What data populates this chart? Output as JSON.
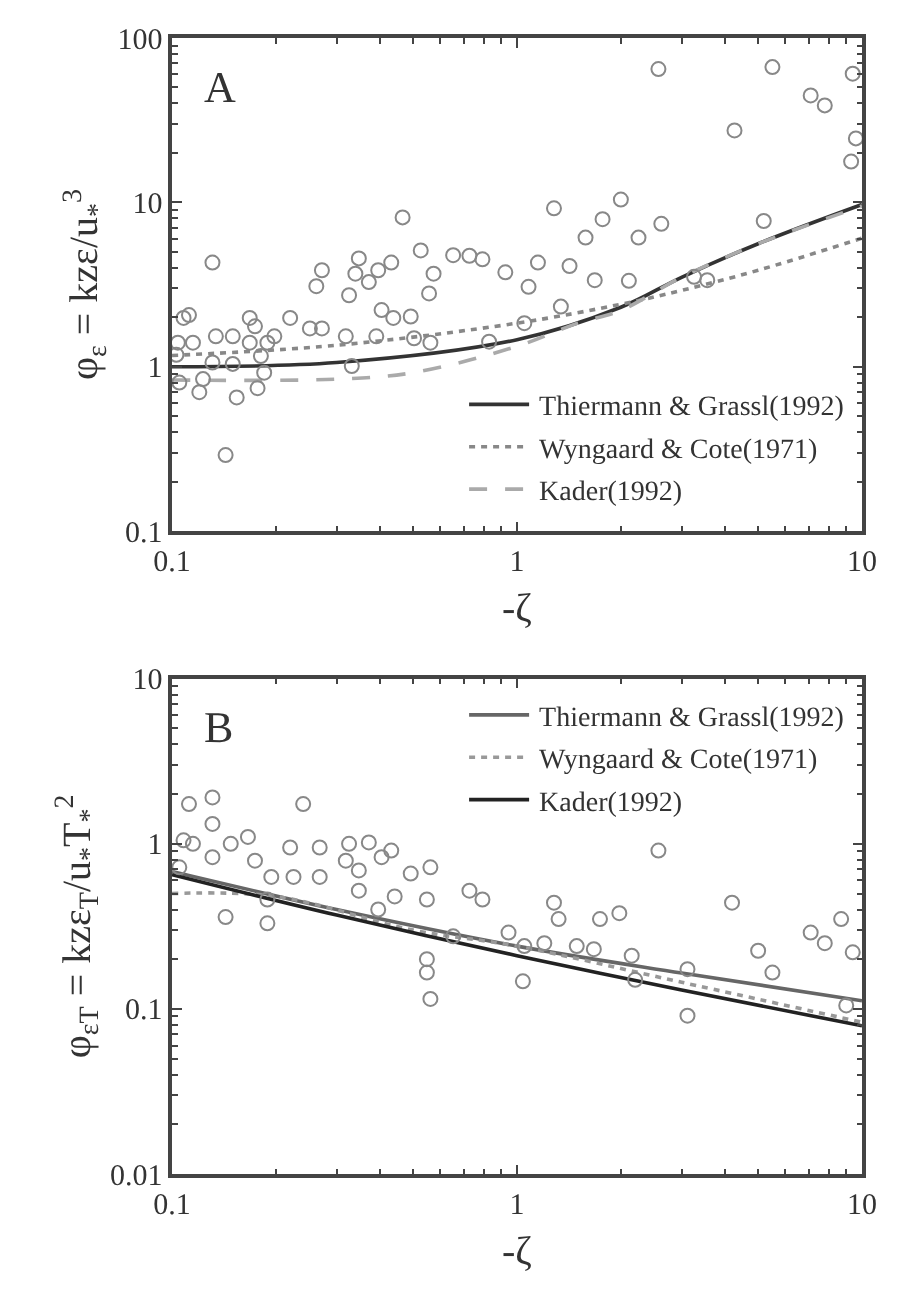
{
  "chart_data": [
    {
      "type": "scatter",
      "xlabel": "-ζ",
      "ylabel": "φ$_{ε}$ = kzε/u$_{*}$$^{3}$",
      "annotations": [
        "A"
      ],
      "log": "xy",
      "xlim": [
        0.1,
        10
      ],
      "ylim": [
        0.1,
        100
      ],
      "xticks": [
        0.1,
        1,
        10
      ],
      "yticks": [
        0.1,
        1,
        10,
        100
      ],
      "legend": "bottom right",
      "marker": "circle",
      "series": [
        {
          "color": "#888888",
          "x": [
            0.112,
            0.131,
            0.15,
            0.168,
            0.168,
            0.198,
            0.251,
            0.348,
            0.466,
            0.526,
            0.653,
            0.794,
            0.925,
            1.08,
            1.28,
            1.42,
            1.58,
            1.77,
            2.0,
            2.62,
            2.25,
            2.11,
            1.68,
            1.34,
            1.15,
            3.56,
            2.57,
            5.5,
            7.1,
            7.8,
            4.27,
            9.4,
            9.6,
            9.3,
            5.19,
            0.272,
            0.262,
            0.326,
            0.34,
            0.372,
            0.396,
            0.405,
            0.432,
            0.438,
            0.492,
            0.556,
            0.573,
            0.728,
            0.561,
            0.319,
            0.332,
            0.22,
            0.272,
            0.391,
            0.503,
            0.83,
            1.05,
            0.143,
            0.154,
            0.12,
            0.105,
            0.123,
            0.177,
            0.185,
            0.15,
            0.181,
            0.131,
            0.104,
            0.103,
            0.115,
            0.108,
            0.134,
            0.174,
            0.189,
            3.26
          ],
          "values": [
            2.06,
            4.3,
            1.53,
            1.98,
            1.4,
            1.53,
            1.71,
            4.56,
            8.1,
            5.1,
            4.77,
            4.5,
            3.75,
            3.06,
            9.2,
            4.1,
            6.1,
            7.9,
            10.4,
            7.4,
            6.1,
            3.33,
            3.36,
            2.32,
            4.3,
            3.36,
            64.7,
            66.5,
            44.7,
            38.9,
            27.4,
            60.7,
            24.5,
            17.7,
            7.7,
            3.86,
            3.09,
            2.72,
            3.68,
            3.27,
            3.86,
            2.21,
            4.3,
            1.98,
            2.02,
            2.79,
            3.68,
            4.73,
            1.4,
            1.53,
            1.01,
            1.98,
            1.71,
            1.53,
            1.49,
            1.42,
            1.84,
            0.29,
            0.65,
            0.7,
            0.8,
            0.84,
            0.74,
            0.92,
            1.04,
            1.16,
            1.06,
            1.4,
            1.18,
            1.4,
            1.98,
            1.53,
            1.76,
            1.4,
            3.52
          ]
        },
        {
          "type": "line",
          "name": "Thiermann & Grassl(1992)",
          "color": "#333333",
          "line_style": "solid",
          "marker": "none",
          "x": [
            0.1,
            0.3,
            1,
            2,
            3,
            5,
            10
          ],
          "values": [
            1.0,
            1.06,
            1.46,
            2.3,
            3.5,
            5.6,
            9.7
          ]
        },
        {
          "type": "line",
          "name": "Wyngaard & Cote(1971)",
          "color": "#888888",
          "line_style": "dotted",
          "marker": "none",
          "x": [
            0.1,
            0.3,
            1,
            2,
            3,
            5,
            10
          ],
          "values": [
            1.17,
            1.35,
            1.84,
            2.4,
            2.91,
            3.86,
            6.05
          ]
        },
        {
          "type": "line",
          "name": "Kader(1992)",
          "color": "#aaaaaa",
          "line_style": "dashed",
          "marker": "none",
          "x": [
            0.1,
            0.3,
            0.5,
            1,
            1.5,
            2,
            3,
            5,
            10
          ],
          "values": [
            0.83,
            0.84,
            0.92,
            1.33,
            1.84,
            2.2,
            3.5,
            5.6,
            9.5
          ]
        }
      ]
    },
    {
      "type": "scatter",
      "xlabel": "-ζ",
      "ylabel": "φ$_{εT}$ = kzε$_{T}$/u$_{*}$T$_{*}$$^{2}$",
      "annotations": [
        "B"
      ],
      "log": "xy",
      "xlim": [
        0.1,
        10
      ],
      "ylim": [
        0.01,
        10
      ],
      "xticks": [
        0.1,
        1,
        10
      ],
      "yticks": [
        0.01,
        0.1,
        1,
        10
      ],
      "legend": "top right",
      "marker": "circle",
      "series": [
        {
          "color": "#888888",
          "x": [
            0.112,
            0.131,
            0.131,
            0.108,
            0.115,
            0.105,
            0.131,
            0.148,
            0.166,
            0.174,
            0.143,
            0.189,
            0.189,
            0.194,
            0.22,
            0.225,
            0.24,
            0.268,
            0.268,
            0.319,
            0.326,
            0.348,
            0.372,
            0.405,
            0.432,
            0.348,
            0.396,
            0.442,
            0.492,
            0.561,
            0.548,
            0.548,
            0.548,
            0.561,
            0.653,
            0.728,
            0.794,
            0.945,
            1.04,
            1.05,
            1.2,
            1.28,
            1.32,
            1.49,
            1.67,
            1.74,
            1.98,
            2.15,
            2.2,
            2.57,
            3.12,
            3.12,
            4.2,
            5.0,
            5.5,
            7.1,
            7.8,
            8.7,
            9.0,
            9.4
          ],
          "values": [
            1.74,
            1.91,
            1.32,
            1.05,
            1.0,
            0.72,
            0.83,
            1.0,
            1.1,
            0.79,
            0.36,
            0.33,
            0.46,
            0.63,
            0.95,
            0.63,
            1.74,
            0.95,
            0.63,
            0.79,
            1.0,
            0.69,
            1.02,
            0.83,
            0.91,
            0.52,
            0.4,
            0.48,
            0.66,
            0.72,
            0.46,
            0.2,
            0.166,
            0.115,
            0.275,
            0.52,
            0.46,
            0.29,
            0.147,
            0.24,
            0.25,
            0.44,
            0.35,
            0.24,
            0.23,
            0.35,
            0.38,
            0.21,
            0.15,
            0.91,
            0.174,
            0.091,
            0.44,
            0.225,
            0.166,
            0.29,
            0.25,
            0.35,
            0.105,
            0.22
          ]
        },
        {
          "type": "line",
          "name": "Thiermann & Grassl(1992)",
          "color": "#666666",
          "line_style": "solid",
          "marker": "none",
          "x": [
            0.1,
            0.3,
            1,
            3,
            10
          ],
          "values": [
            0.68,
            0.4,
            0.24,
            0.165,
            0.112
          ]
        },
        {
          "type": "line",
          "name": "Wyngaard & Cote(1971)",
          "color": "#999999",
          "line_style": "dotted",
          "marker": "none",
          "x": [
            0.1,
            0.2,
            0.5,
            1,
            3,
            10
          ],
          "values": [
            0.5,
            0.48,
            0.3,
            0.24,
            0.145,
            0.083
          ]
        },
        {
          "type": "line",
          "name": "Kader(1992)",
          "color": "#222222",
          "line_style": "solid",
          "marker": "none",
          "x": [
            0.1,
            0.3,
            1,
            3,
            10
          ],
          "values": [
            0.65,
            0.37,
            0.21,
            0.13,
            0.079
          ]
        }
      ]
    }
  ]
}
